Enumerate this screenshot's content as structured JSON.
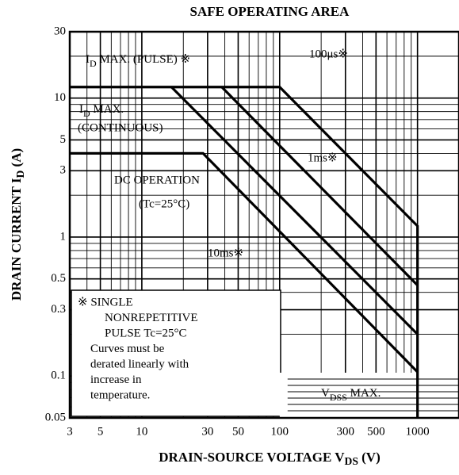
{
  "chart_data": {
    "type": "line",
    "title": "SAFE OPERATING AREA",
    "xlabel": {
      "main": "DRAIN-SOURCE VOLTAGE  V",
      "sub": "DS",
      "rest": "  (V)"
    },
    "ylabel": {
      "main": "DRAIN CURRENT  I",
      "sub": "D",
      "rest": "  (A)"
    },
    "log_x": true,
    "log_y": true,
    "grid": true,
    "minor_grid": true,
    "xlim": [
      3,
      2000
    ],
    "ylim": [
      0.05,
      30
    ],
    "xticks": [
      3,
      5,
      10,
      30,
      50,
      100,
      300,
      500,
      1000
    ],
    "yticks": [
      0.05,
      0.1,
      0.3,
      0.5,
      1,
      3,
      5,
      10,
      30
    ],
    "series": [
      {
        "name": "100μs※",
        "color": "#000000",
        "x": [
          3,
          100,
          1000,
          1000
        ],
        "values": [
          12,
          12,
          1.2,
          0.05
        ]
      },
      {
        "name": "1ms※",
        "color": "#000000",
        "x": [
          38,
          1000
        ],
        "values": [
          12,
          0.45
        ]
      },
      {
        "name": "10ms※",
        "color": "#000000",
        "x": [
          16.4,
          1000
        ],
        "values": [
          12,
          0.2
        ]
      },
      {
        "name": "DC OPERATION",
        "color": "#000000",
        "x": [
          3,
          27.8,
          1000
        ],
        "values": [
          4,
          4,
          0.107
        ]
      }
    ],
    "annotations": {
      "pulse": {
        "main": "I",
        "sub": "D",
        "rest": " MAX. (PULSE) ※"
      },
      "cont1": {
        "main": "I",
        "sub": "D",
        "rest": " MAX."
      },
      "cont2": "(CONTINUOUS)",
      "dc_temp": "(Tc=25°C)",
      "vdss": {
        "main": "V",
        "sub": "DSS",
        "rest": " MAX."
      },
      "notes": [
        "※  SINGLE",
        "NONREPETITIVE",
        "PULSE Tc=25°C",
        "Curves must be",
        "derated linearly with",
        "increase in",
        "temperature."
      ]
    }
  }
}
